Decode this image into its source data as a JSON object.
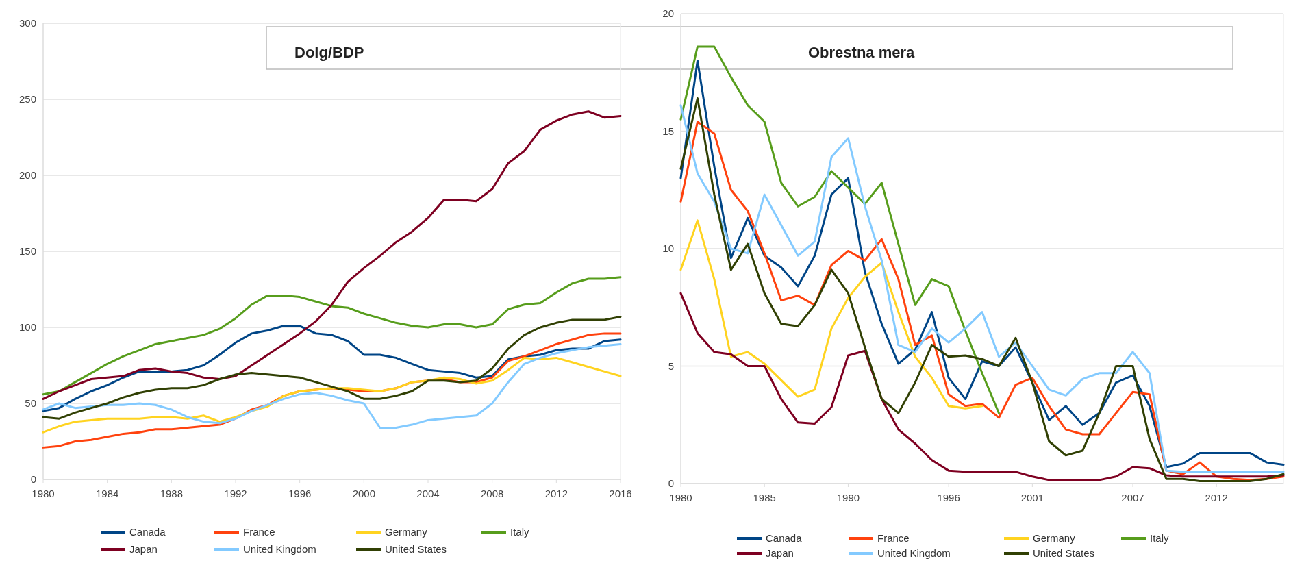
{
  "chart_data": [
    {
      "type": "line",
      "title": "Dolg/BDP",
      "x": [
        1980,
        1981,
        1982,
        1983,
        1984,
        1985,
        1986,
        1987,
        1988,
        1989,
        1990,
        1991,
        1992,
        1993,
        1994,
        1995,
        1996,
        1997,
        1998,
        1999,
        2000,
        2001,
        2002,
        2003,
        2004,
        2005,
        2006,
        2007,
        2008,
        2009,
        2010,
        2011,
        2012,
        2013,
        2014,
        2015,
        2016
      ],
      "xlim": [
        1980,
        2016
      ],
      "xticks": [
        1980,
        1984,
        1988,
        1992,
        1996,
        2000,
        2004,
        2008,
        2012,
        2016
      ],
      "ylim": [
        0,
        300
      ],
      "yticks": [
        0,
        50,
        100,
        150,
        200,
        250,
        300
      ],
      "grid": "y",
      "legend": "bottom",
      "series": [
        {
          "name": "Canada",
          "color": "#004586",
          "values": [
            45,
            47,
            53,
            58,
            62,
            67,
            71,
            71,
            71,
            72,
            75,
            82,
            90,
            96,
            98,
            101,
            101,
            96,
            95,
            91,
            82,
            82,
            80,
            76,
            72,
            71,
            70,
            67,
            68,
            79,
            81,
            82,
            85,
            86,
            86,
            91,
            92
          ]
        },
        {
          "name": "France",
          "color": "#ff420e",
          "values": [
            21,
            22,
            25,
            26,
            28,
            30,
            31,
            33,
            33,
            34,
            35,
            36,
            40,
            46,
            49,
            55,
            58,
            59,
            60,
            59,
            58,
            58,
            60,
            64,
            65,
            66,
            64,
            64,
            67,
            78,
            81,
            85,
            89,
            92,
            95,
            96,
            96
          ]
        },
        {
          "name": "Germany",
          "color": "#ffd320",
          "values": [
            31,
            35,
            38,
            39,
            40,
            40,
            40,
            41,
            41,
            40,
            42,
            38,
            41,
            45,
            48,
            55,
            58,
            59,
            60,
            60,
            59,
            58,
            60,
            64,
            65,
            67,
            66,
            63,
            65,
            72,
            80,
            79,
            80,
            77,
            74,
            71,
            68
          ]
        },
        {
          "name": "Italy",
          "color": "#579d1c",
          "values": [
            56,
            58,
            64,
            70,
            76,
            81,
            85,
            89,
            91,
            93,
            95,
            99,
            106,
            115,
            121,
            121,
            120,
            117,
            114,
            113,
            109,
            106,
            103,
            101,
            100,
            102,
            102,
            100,
            102,
            112,
            115,
            116,
            123,
            129,
            132,
            132,
            133
          ]
        },
        {
          "name": "Japan",
          "color": "#7e0021",
          "values": [
            53,
            58,
            62,
            66,
            67,
            68,
            72,
            73,
            71,
            70,
            67,
            66,
            68,
            75,
            82,
            89,
            96,
            104,
            115,
            130,
            139,
            147,
            156,
            163,
            172,
            184,
            184,
            183,
            191,
            208,
            216,
            230,
            236,
            240,
            242,
            238,
            239
          ]
        },
        {
          "name": "United Kingdom",
          "color": "#83caff",
          "values": [
            46,
            50,
            47,
            48,
            49,
            49,
            50,
            49,
            46,
            41,
            38,
            37,
            40,
            45,
            49,
            53,
            56,
            57,
            55,
            52,
            50,
            34,
            34,
            36,
            39,
            40,
            41,
            42,
            50,
            64,
            76,
            80,
            83,
            85,
            87,
            88,
            89
          ]
        },
        {
          "name": "United States",
          "color": "#314004",
          "values": [
            41,
            40,
            44,
            47,
            50,
            54,
            57,
            59,
            60,
            60,
            62,
            66,
            69,
            70,
            69,
            68,
            67,
            64,
            61,
            58,
            53,
            53,
            55,
            58,
            65,
            65,
            64,
            65,
            73,
            86,
            95,
            100,
            103,
            105,
            105,
            105,
            107
          ]
        }
      ]
    },
    {
      "type": "line",
      "title": "Obrestna mera",
      "x": [
        1980,
        1981,
        1982,
        1983,
        1984,
        1985,
        1986,
        1987,
        1988,
        1989,
        1990,
        1991,
        1992,
        1993,
        1994,
        1995,
        1996,
        1997,
        1998,
        1999,
        2000,
        2001,
        2002,
        2003,
        2004,
        2005,
        2006,
        2007,
        2008,
        2009,
        2010,
        2011,
        2012,
        2013,
        2014,
        2015,
        2016
      ],
      "xlim": [
        1980,
        2016
      ],
      "xticks": [
        1980,
        1985,
        1990,
        1996,
        2001,
        2007,
        2012
      ],
      "ylim": [
        0,
        20
      ],
      "yticks": [
        0,
        5,
        10,
        15,
        20
      ],
      "grid": "y",
      "legend": "bottom",
      "series": [
        {
          "name": "Canada",
          "color": "#004586",
          "values": [
            13.0,
            18.0,
            13.5,
            9.6,
            11.3,
            9.7,
            9.2,
            8.4,
            9.7,
            12.3,
            13.0,
            9.0,
            6.8,
            5.1,
            5.7,
            7.3,
            4.5,
            3.6,
            5.2,
            5.0,
            5.8,
            4.3,
            2.7,
            3.3,
            2.5,
            3.0,
            4.3,
            4.6,
            3.3,
            0.7,
            0.85,
            1.3,
            1.3,
            1.3,
            1.3,
            0.9,
            0.8
          ]
        },
        {
          "name": "France",
          "color": "#ff420e",
          "values": [
            12.0,
            15.4,
            14.9,
            12.5,
            11.6,
            9.8,
            7.8,
            8.0,
            7.6,
            9.3,
            9.9,
            9.5,
            10.4,
            8.7,
            5.9,
            6.3,
            3.8,
            3.3,
            3.4,
            2.8,
            4.2,
            4.5,
            3.3,
            2.3,
            2.1,
            2.1,
            3.0,
            3.9,
            3.8,
            0.55,
            0.4,
            0.9,
            0.3,
            0.2,
            0.15,
            0.2,
            0.3
          ]
        },
        {
          "name": "Germany",
          "color": "#ffd320",
          "values": [
            9.1,
            11.2,
            8.7,
            5.4,
            5.6,
            5.1,
            4.4,
            3.7,
            4.0,
            6.6,
            7.9,
            8.8,
            9.4,
            7.3,
            5.4,
            4.5,
            3.3,
            3.2,
            3.3,
            null,
            null,
            null,
            null,
            null,
            null,
            null,
            null,
            null,
            null,
            null,
            null,
            null,
            null,
            null,
            null,
            null,
            null
          ]
        },
        {
          "name": "Italy",
          "color": "#579d1c",
          "values": [
            15.5,
            18.6,
            18.6,
            17.3,
            16.1,
            15.4,
            12.8,
            11.8,
            12.2,
            13.3,
            12.6,
            11.9,
            12.8,
            10.2,
            7.6,
            8.7,
            8.4,
            6.5,
            4.7,
            3.0,
            null,
            null,
            null,
            null,
            null,
            null,
            null,
            null,
            null,
            null,
            null,
            null,
            null,
            null,
            null,
            null,
            null
          ]
        },
        {
          "name": "Japan",
          "color": "#7e0021",
          "values": [
            8.1,
            6.4,
            5.6,
            5.5,
            5.0,
            5.0,
            3.6,
            2.6,
            2.55,
            3.25,
            5.45,
            5.65,
            3.6,
            2.3,
            1.7,
            1.0,
            0.55,
            0.5,
            0.5,
            0.5,
            0.5,
            0.3,
            0.15,
            0.15,
            0.15,
            0.15,
            0.3,
            0.7,
            0.65,
            0.35,
            0.3,
            0.3,
            0.3,
            0.3,
            0.3,
            0.3,
            0.35
          ]
        },
        {
          "name": "United Kingdom",
          "color": "#83caff",
          "values": [
            16.1,
            13.2,
            12.0,
            10.0,
            9.8,
            12.3,
            11.0,
            9.7,
            10.3,
            13.9,
            14.7,
            11.8,
            9.5,
            5.9,
            5.6,
            6.6,
            6.0,
            6.6,
            7.3,
            5.4,
            6.0,
            5.0,
            4.0,
            3.75,
            4.45,
            4.7,
            4.7,
            5.6,
            4.7,
            0.55,
            0.5,
            0.5,
            0.5,
            0.5,
            0.5,
            0.5,
            0.5
          ]
        },
        {
          "name": "United States",
          "color": "#314004",
          "values": [
            13.4,
            16.4,
            12.3,
            9.1,
            10.2,
            8.1,
            6.8,
            6.7,
            7.6,
            9.1,
            8.1,
            5.8,
            3.6,
            3.0,
            4.3,
            5.9,
            5.4,
            5.45,
            5.3,
            5.0,
            6.2,
            4.3,
            1.8,
            1.2,
            1.4,
            3.0,
            5.0,
            5.0,
            1.9,
            0.2,
            0.2,
            0.1,
            0.1,
            0.1,
            0.1,
            0.2,
            0.4
          ]
        }
      ]
    }
  ]
}
